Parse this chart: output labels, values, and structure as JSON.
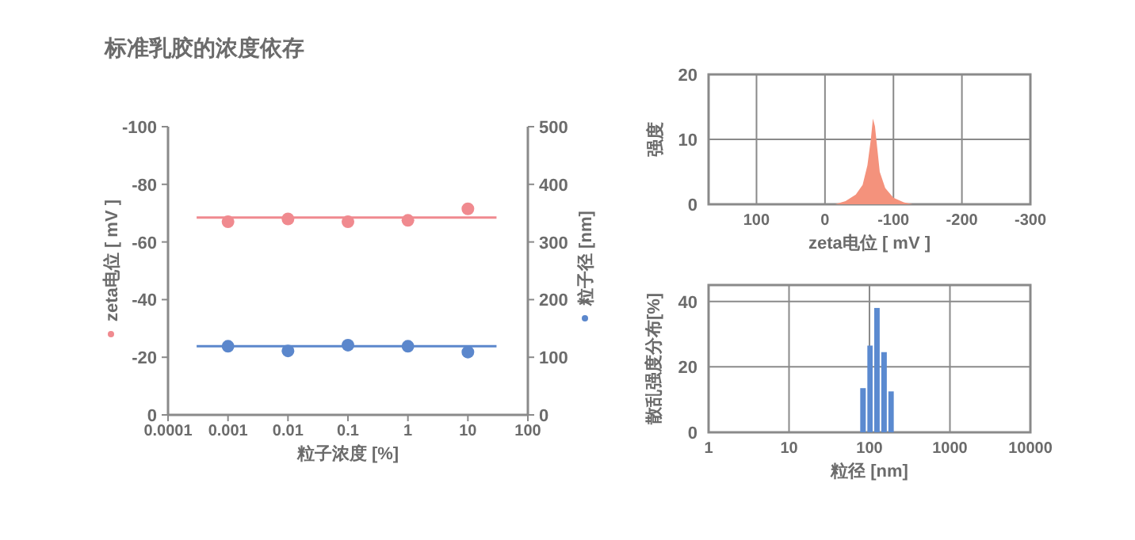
{
  "chart_data": [
    {
      "type": "scatter",
      "title": "标准乳胶的浓度依存",
      "xlabel": "粒子浓度 [%]",
      "ylabel": "zeta电位 [ mV ]",
      "y2label": "粒子径 [nm]",
      "log": "x",
      "xlim": [
        0.0001,
        100
      ],
      "xticks": [
        0.0001,
        0.001,
        0.01,
        0.1,
        1,
        10,
        100
      ],
      "ylim": [
        0,
        -100
      ],
      "yticks": [
        0,
        -20,
        -40,
        -60,
        -80,
        -100
      ],
      "y2lim": [
        0,
        500
      ],
      "y2ticks": [
        0,
        100,
        200,
        300,
        400,
        500
      ],
      "marker": "circle",
      "series": [
        {
          "color": "#f08a8f",
          "x": [
            0.001,
            0.01,
            0.1,
            1,
            10
          ],
          "values": [
            -67,
            -68,
            -67,
            -67.5,
            -71.5
          ]
        },
        {
          "axis": "y2",
          "color": "#5b87cc",
          "x": [
            0.001,
            0.01,
            0.1,
            1,
            10
          ],
          "values": [
            119,
            111,
            121,
            119,
            109
          ]
        },
        {
          "type": "line",
          "marker": "none",
          "color": "#f08a8f",
          "x": [
            0.0003,
            30
          ],
          "values": [
            -68.5,
            -68.5
          ]
        },
        {
          "type": "line",
          "marker": "none",
          "axis": "y2",
          "color": "#5b87cc",
          "x": [
            0.0003,
            30
          ],
          "values": [
            119,
            119
          ]
        }
      ]
    },
    {
      "type": "area",
      "xlabel": "zeta电位 [ mV ]",
      "ylabel": "强度",
      "xlim": [
        170,
        -300
      ],
      "xticks": [
        100,
        0,
        -100,
        -200,
        -300
      ],
      "ylim": [
        0,
        20
      ],
      "yticks": [
        0,
        10,
        20
      ],
      "grid": true,
      "color": "#f4927c",
      "x": [
        -15,
        -30,
        -45,
        -55,
        -62,
        -67,
        -70,
        -73,
        -76,
        -80,
        -88,
        -100,
        -115,
        -128
      ],
      "values": [
        0,
        0.5,
        1.5,
        3,
        6,
        10,
        13.2,
        12,
        9,
        5,
        2.5,
        1,
        0.3,
        0
      ]
    },
    {
      "type": "histogram",
      "xlabel": "粒径 [nm]",
      "ylabel": "散乱强度分布[%]",
      "log": "x",
      "xlim": [
        1,
        10000
      ],
      "xticks": [
        1,
        10,
        100,
        1000,
        10000
      ],
      "ylim": [
        0,
        45
      ],
      "yticks": [
        0,
        20,
        40
      ],
      "grid": true,
      "color": "#5b8ad0",
      "bins": [
        75,
        92,
        112,
        137,
        168,
        205
      ],
      "values": [
        13.5,
        26.5,
        38,
        24.5,
        12.5
      ]
    }
  ]
}
